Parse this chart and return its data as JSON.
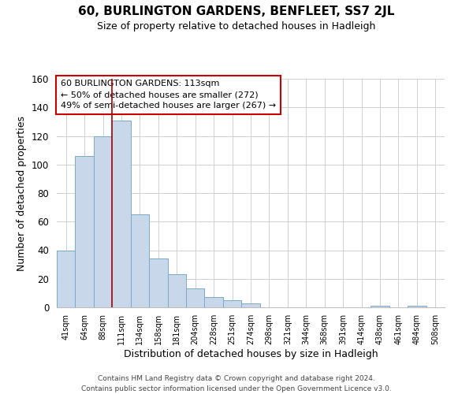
{
  "title": "60, BURLINGTON GARDENS, BENFLEET, SS7 2JL",
  "subtitle": "Size of property relative to detached houses in Hadleigh",
  "xlabel": "Distribution of detached houses by size in Hadleigh",
  "ylabel": "Number of detached properties",
  "bin_labels": [
    "41sqm",
    "64sqm",
    "88sqm",
    "111sqm",
    "134sqm",
    "158sqm",
    "181sqm",
    "204sqm",
    "228sqm",
    "251sqm",
    "274sqm",
    "298sqm",
    "321sqm",
    "344sqm",
    "368sqm",
    "391sqm",
    "414sqm",
    "438sqm",
    "461sqm",
    "484sqm",
    "508sqm"
  ],
  "bar_heights": [
    40,
    106,
    120,
    131,
    65,
    34,
    23,
    13,
    7,
    5,
    3,
    0,
    0,
    0,
    0,
    0,
    0,
    1,
    0,
    1,
    0
  ],
  "bar_color": "#c8d8ea",
  "bar_edge_color": "#7aaac8",
  "vline_color": "#aa0000",
  "annotation_title": "60 BURLINGTON GARDENS: 113sqm",
  "annotation_line1": "← 50% of detached houses are smaller (272)",
  "annotation_line2": "49% of semi-detached houses are larger (267) →",
  "annotation_box_color": "#ffffff",
  "annotation_box_edge": "#cc0000",
  "ylim": [
    0,
    160
  ],
  "yticks": [
    0,
    20,
    40,
    60,
    80,
    100,
    120,
    140,
    160
  ],
  "footer1": "Contains HM Land Registry data © Crown copyright and database right 2024.",
  "footer2": "Contains public sector information licensed under the Open Government Licence v3.0.",
  "background_color": "#ffffff",
  "grid_color": "#d0d0d0"
}
